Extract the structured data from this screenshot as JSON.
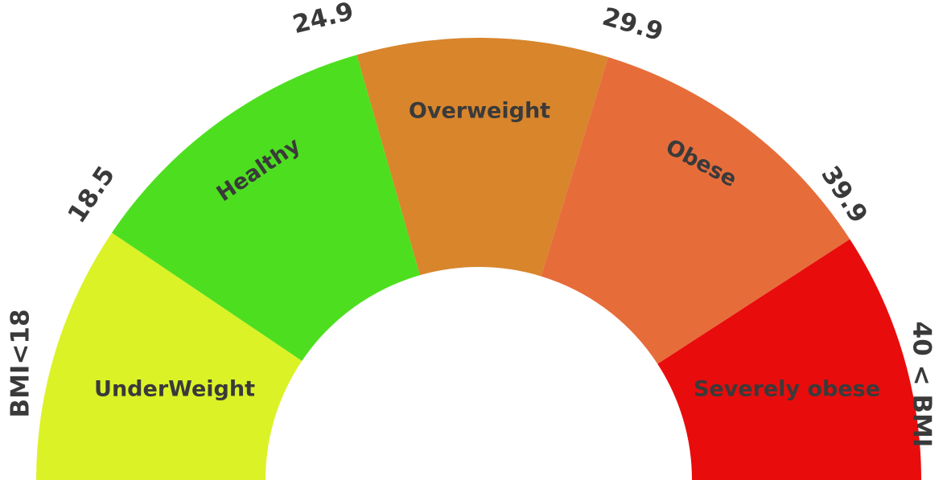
{
  "gauge": {
    "segments": [
      {
        "key": "underweight",
        "label": "UnderWeight",
        "color": "#dbf227"
      },
      {
        "key": "healthy",
        "label": "Healthy",
        "color": "#4ddf1f"
      },
      {
        "key": "overweight",
        "label": "Overweight",
        "color": "#d8852c"
      },
      {
        "key": "obese",
        "label": "Obese",
        "color": "#e66d3a"
      },
      {
        "key": "severely-obese",
        "label": "Severely obese",
        "color": "#e90c0c"
      }
    ],
    "thresholds": [
      {
        "key": "bmi-18",
        "label": "BMI<18"
      },
      {
        "key": "18-5",
        "label": "18.5"
      },
      {
        "key": "24-9",
        "label": "24.9"
      },
      {
        "key": "29-9",
        "label": "29.9"
      },
      {
        "key": "39-9",
        "label": "39.9"
      },
      {
        "key": "40-bmi",
        "label": "40 < BMI"
      }
    ]
  }
}
